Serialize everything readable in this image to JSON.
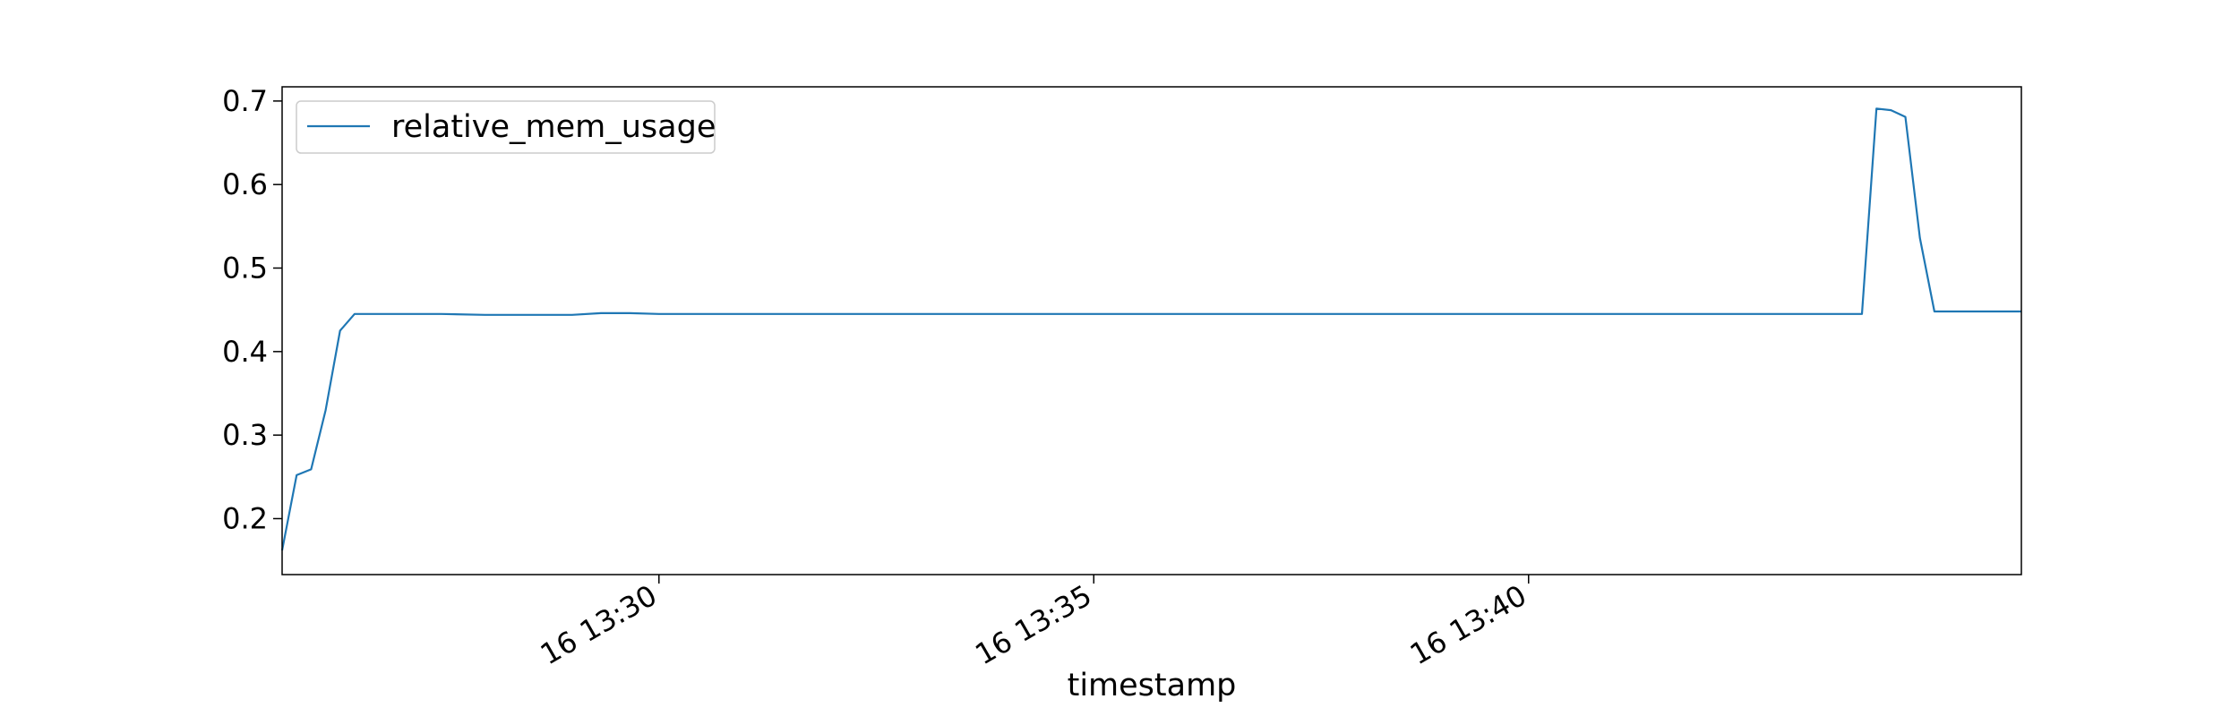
{
  "chart_data": {
    "type": "line",
    "xlabel": "timestamp",
    "ylabel": "",
    "x_start": "13:25:40",
    "x_end": "13:45:40",
    "xlim": [
      "13:25:40",
      "13:45:40"
    ],
    "ylim": [
      0.133,
      0.717
    ],
    "x_ticks": [
      {
        "time": "13:30:00",
        "label": "16 13:30"
      },
      {
        "time": "13:35:00",
        "label": "16 13:35"
      },
      {
        "time": "13:40:00",
        "label": "16 13:40"
      }
    ],
    "y_ticks": [
      {
        "value": 0.2,
        "label": "0.2"
      },
      {
        "value": 0.3,
        "label": "0.3"
      },
      {
        "value": 0.4,
        "label": "0.4"
      },
      {
        "value": 0.5,
        "label": "0.5"
      },
      {
        "value": 0.6,
        "label": "0.6"
      },
      {
        "value": 0.7,
        "label": "0.7"
      }
    ],
    "legend": {
      "position": "upper-left"
    },
    "grid": false,
    "series": [
      {
        "name": "relative_mem_usage",
        "color": "#1f77b4",
        "points": [
          [
            "13:25:40",
            0.162
          ],
          [
            "13:25:50",
            0.252
          ],
          [
            "13:26:00",
            0.259
          ],
          [
            "13:26:10",
            0.33
          ],
          [
            "13:26:20",
            0.425
          ],
          [
            "13:26:30",
            0.445
          ],
          [
            "13:27:00",
            0.445
          ],
          [
            "13:27:30",
            0.445
          ],
          [
            "13:28:00",
            0.444
          ],
          [
            "13:28:30",
            0.444
          ],
          [
            "13:29:00",
            0.444
          ],
          [
            "13:29:20",
            0.446
          ],
          [
            "13:29:40",
            0.446
          ],
          [
            "13:30:00",
            0.445
          ],
          [
            "13:31:00",
            0.445
          ],
          [
            "13:32:00",
            0.445
          ],
          [
            "13:33:00",
            0.445
          ],
          [
            "13:34:00",
            0.445
          ],
          [
            "13:35:00",
            0.445
          ],
          [
            "13:36:00",
            0.445
          ],
          [
            "13:37:00",
            0.445
          ],
          [
            "13:38:00",
            0.445
          ],
          [
            "13:39:00",
            0.445
          ],
          [
            "13:40:00",
            0.445
          ],
          [
            "13:41:00",
            0.445
          ],
          [
            "13:42:00",
            0.445
          ],
          [
            "13:43:00",
            0.445
          ],
          [
            "13:43:50",
            0.445
          ],
          [
            "13:44:00",
            0.691
          ],
          [
            "13:44:10",
            0.689
          ],
          [
            "13:44:20",
            0.681
          ],
          [
            "13:44:30",
            0.536
          ],
          [
            "13:44:40",
            0.448
          ],
          [
            "13:45:00",
            0.448
          ],
          [
            "13:45:40",
            0.448
          ]
        ]
      }
    ]
  }
}
